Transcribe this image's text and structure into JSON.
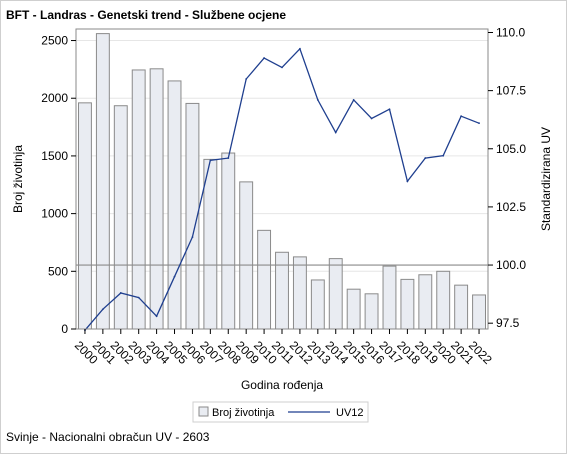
{
  "page": {
    "title": "BFT - Landras - Genetski trend - Službene ocjene",
    "footnote": "Svinje - Nacionalni obračun UV - 2603"
  },
  "colors": {
    "bar_fill": "#e9ecf2",
    "bar_stroke": "#8a8a8a",
    "line": "#1f3f8f",
    "reference_line": "#8a8a8a",
    "grid": "#e6e6e6"
  },
  "chart_data": {
    "type": "bar",
    "title": "BFT - Landras - Genetski trend - Službene ocjene",
    "xlabel": "Godina rođenja",
    "categories": [
      "2000",
      "2001",
      "2002",
      "2003",
      "2004",
      "2005",
      "2006",
      "2007",
      "2008",
      "2009",
      "2010",
      "2011",
      "2012",
      "2013",
      "2014",
      "2015",
      "2016",
      "2017",
      "2018",
      "2019",
      "2020",
      "2021",
      "2022"
    ],
    "series": [
      {
        "name": "Broj životinja",
        "type": "bar",
        "axis": "left",
        "values": [
          1960,
          2560,
          1935,
          2245,
          2255,
          2150,
          1955,
          1470,
          1525,
          1275,
          855,
          665,
          625,
          425,
          610,
          345,
          305,
          545,
          430,
          470,
          500,
          380,
          295
        ]
      },
      {
        "name": "UV12",
        "type": "line",
        "axis": "right",
        "values": [
          97.2,
          98.1,
          98.8,
          98.6,
          97.8,
          99.5,
          101.2,
          104.5,
          104.6,
          108.0,
          108.9,
          108.5,
          109.3,
          107.1,
          105.7,
          107.1,
          106.3,
          106.7,
          103.6,
          104.6,
          104.7,
          106.4,
          106.1
        ]
      }
    ],
    "y_left": {
      "label": "Broj životinja",
      "lim": [
        0,
        2600
      ],
      "ticks": [
        0,
        500,
        1000,
        1500,
        2000,
        2500
      ]
    },
    "y_right": {
      "label": "Standardizirana UV",
      "lim": [
        97.25,
        110.15
      ],
      "ticks": [
        "97.5",
        "100.0",
        "102.5",
        "105.0",
        "107.5",
        "110.0"
      ]
    },
    "reference_line": {
      "axis": "right",
      "value": 100.0
    },
    "grid": true,
    "legend": {
      "position": "bottom",
      "entries": [
        "Broj životinja",
        "UV12"
      ]
    }
  }
}
